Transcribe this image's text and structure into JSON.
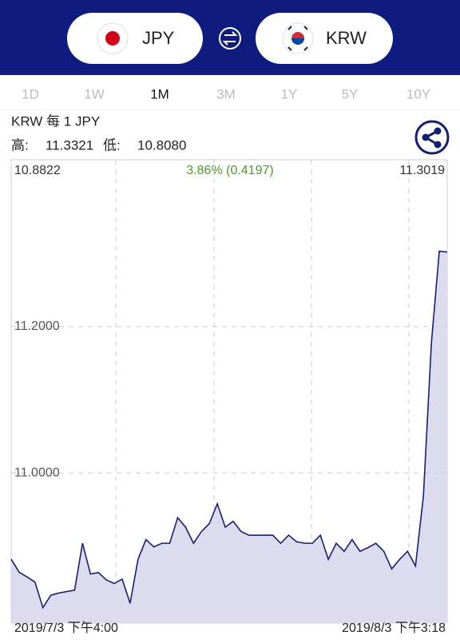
{
  "currency": {
    "from": "JPY",
    "to": "KRW"
  },
  "tabs": [
    "1D",
    "1W",
    "1M",
    "3M",
    "1Y",
    "5Y",
    "10Y"
  ],
  "active_tab": "1M",
  "pair_label": "KRW 每 1 JPY",
  "high_label": "高:",
  "high": "11.3321",
  "low_label": "低:",
  "low": "10.8080",
  "chart_data": {
    "type": "line",
    "open": "10.8822",
    "change": "3.86% (0.4197)",
    "close": "11.3019",
    "x_start": "2019/7/3 下午4:00",
    "x_end": "2019/8/3 下午3:18",
    "series": [
      {
        "color": "#1a1f6e",
        "fill": "#dcdcee",
        "values": [
          10.8822,
          10.8645,
          10.858,
          10.851,
          10.816,
          10.833,
          10.836,
          10.838,
          10.84,
          10.904,
          10.862,
          10.864,
          10.854,
          10.849,
          10.855,
          10.822,
          10.882,
          10.909,
          10.899,
          10.904,
          10.904,
          10.939,
          10.926,
          10.904,
          10.92,
          10.931,
          10.958,
          10.926,
          10.934,
          10.92,
          10.915,
          10.915,
          10.915,
          10.915,
          10.904,
          10.915,
          10.906,
          10.904,
          10.904,
          10.915,
          10.882,
          10.904,
          10.893,
          10.909,
          10.893,
          10.898,
          10.904,
          10.893,
          10.869,
          10.882,
          10.893,
          10.873,
          10.969,
          11.177,
          11.303,
          11.3019
        ]
      }
    ],
    "ylim": [
      10.795,
      11.428
    ],
    "yticks": [
      {
        "value": 11.0,
        "label": "11.0000"
      },
      {
        "value": 11.2,
        "label": "11.2000"
      }
    ],
    "grid": true
  }
}
